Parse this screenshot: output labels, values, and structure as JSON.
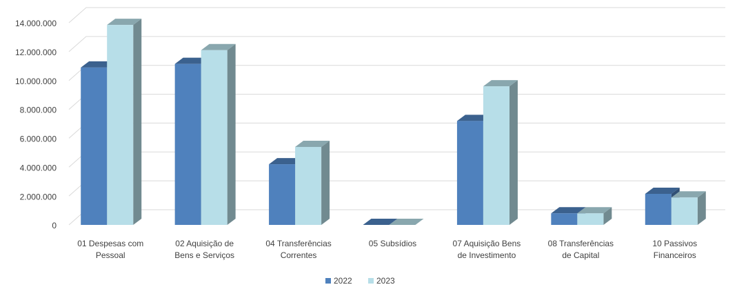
{
  "chart_data": {
    "type": "bar3d",
    "categories": [
      [
        "01 Despesas com",
        "Pessoal"
      ],
      [
        "02 Aquisição de",
        "Bens e Serviços"
      ],
      [
        "04 Transferências",
        "Correntes"
      ],
      [
        "05 Subsídios"
      ],
      [
        "07 Aquisição Bens",
        "de Investimento"
      ],
      [
        "08 Transferências",
        "de Capital"
      ],
      [
        "10 Passivos",
        "Financeiros"
      ]
    ],
    "series": [
      {
        "name": "2022",
        "color": "#4f81bd",
        "values": [
          10900000,
          11150000,
          4200000,
          0,
          7200000,
          800000,
          2150000
        ]
      },
      {
        "name": "2023",
        "color": "#b7dee8",
        "values": [
          13850000,
          12100000,
          5400000,
          0,
          9600000,
          800000,
          1900000
        ]
      }
    ],
    "ylim": [
      0,
      14000000
    ],
    "yticks": [
      0,
      {
        "value": 2000000,
        "label": "2.000.000"
      },
      {
        "value": 4000000,
        "label": "4.000.000"
      },
      {
        "value": 6000000,
        "label": "6.000.000"
      },
      {
        "value": 8000000,
        "label": "8.000.000"
      },
      {
        "value": 10000000,
        "label": "10.000.000"
      },
      {
        "value": 12000000,
        "label": "12.000.000"
      },
      {
        "value": 14000000,
        "label": "14.000.000"
      }
    ],
    "grid": true,
    "legend": "bottom"
  }
}
